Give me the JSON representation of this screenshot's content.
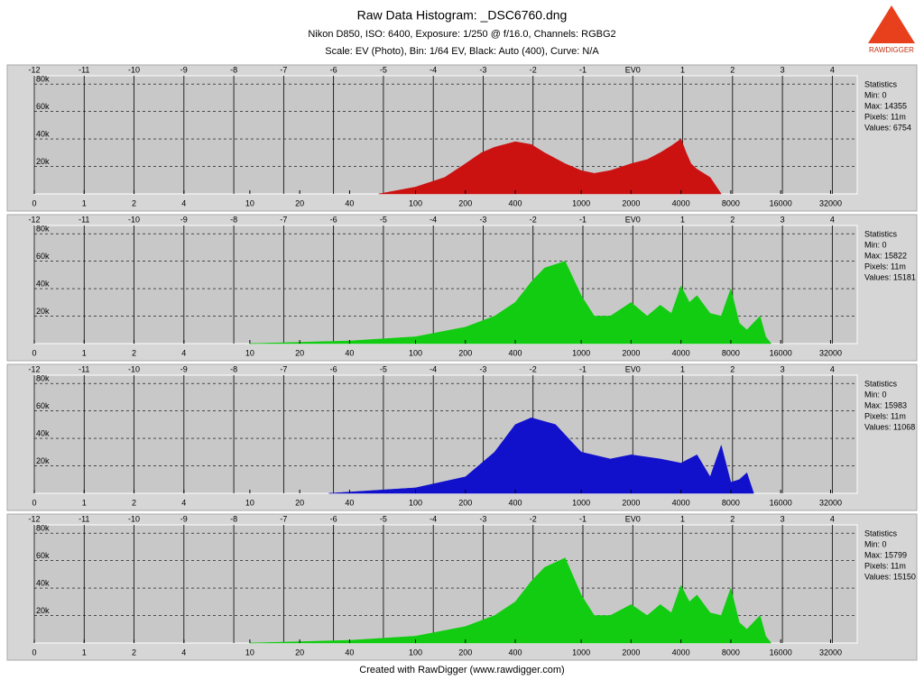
{
  "title": "Raw Data Histogram: _DSC6760.dng",
  "subtitle": "Nikon D850, ISO: 6400, Exposure: 1/250 @ f/16.0, Channels: RGBG2",
  "subtitle2": "Scale: EV (Photo), Bin: 1/64 EV, Black: Auto (400), Curve: N/A",
  "logo": "RAWDIGGER",
  "footer": "Created with RawDigger (www.rawdigger.com)",
  "chart_data": [
    {
      "type": "area",
      "color": "#cc1111",
      "x": [
        60,
        100,
        150,
        200,
        250,
        300,
        400,
        500,
        600,
        800,
        1000,
        1200,
        1500,
        2000,
        2500,
        3000,
        3500,
        4000,
        4300,
        4600,
        5000,
        6000,
        7000
      ],
      "values": [
        0,
        5000,
        12000,
        22000,
        30000,
        34000,
        38000,
        36000,
        30000,
        22000,
        17000,
        15000,
        17000,
        22000,
        25000,
        30000,
        35000,
        40000,
        30000,
        22000,
        18000,
        12000,
        0
      ],
      "xlim": [
        0.5,
        46341
      ],
      "xticks": [
        0,
        1,
        2,
        4,
        10,
        20,
        40,
        100,
        200,
        400,
        1000,
        2000,
        4000,
        8000,
        16000,
        32000
      ],
      "x2lim": [
        -12,
        4.5
      ],
      "x2ticks": [
        -12,
        -11,
        -10,
        -9,
        -8,
        -7,
        -6,
        -5,
        -4,
        -3,
        -2,
        -1,
        {
          "value": 0,
          "label": "EV0"
        },
        1,
        2,
        3,
        4
      ],
      "ylim": [
        0,
        86000
      ],
      "yticks": [
        {
          "value": 20000,
          "label": "20k"
        },
        {
          "value": 40000,
          "label": "40k"
        },
        {
          "value": 60000,
          "label": "60k"
        },
        {
          "value": 80000,
          "label": "80k"
        }
      ],
      "stats": [
        "Statistics",
        "Min: 0",
        "Max: 14355",
        "Pixels: 11m",
        "Values: 6754"
      ]
    },
    {
      "type": "area",
      "color": "#11cc11",
      "x": [
        10,
        40,
        100,
        200,
        300,
        400,
        500,
        600,
        800,
        1000,
        1200,
        1500,
        2000,
        2500,
        3000,
        3500,
        4000,
        4500,
        5000,
        6000,
        7000,
        8000,
        9000,
        10000,
        12000,
        13000,
        14000
      ],
      "values": [
        0,
        2000,
        5000,
        12000,
        20000,
        30000,
        45000,
        55000,
        60000,
        35000,
        20000,
        20000,
        30000,
        20000,
        28000,
        22000,
        42000,
        30000,
        35000,
        22000,
        20000,
        40000,
        15000,
        10000,
        20000,
        5000,
        0
      ],
      "xlim": [
        0.5,
        46341
      ],
      "xticks": [
        0,
        1,
        2,
        4,
        10,
        20,
        40,
        100,
        200,
        400,
        1000,
        2000,
        4000,
        8000,
        16000,
        32000
      ],
      "x2lim": [
        -12,
        4.5
      ],
      "x2ticks": [
        -12,
        -11,
        -10,
        -9,
        -8,
        -7,
        -6,
        -5,
        -4,
        -3,
        -2,
        -1,
        {
          "value": 0,
          "label": "EV0"
        },
        1,
        2,
        3,
        4
      ],
      "ylim": [
        0,
        86000
      ],
      "yticks": [
        {
          "value": 20000,
          "label": "20k"
        },
        {
          "value": 40000,
          "label": "40k"
        },
        {
          "value": 60000,
          "label": "60k"
        },
        {
          "value": 80000,
          "label": "80k"
        }
      ],
      "stats": [
        "Statistics",
        "Min: 0",
        "Max: 15822",
        "Pixels: 11m",
        "Values: 15181"
      ]
    },
    {
      "type": "area",
      "color": "#1111cc",
      "x": [
        30,
        100,
        200,
        300,
        400,
        500,
        700,
        1000,
        1500,
        2000,
        3000,
        4000,
        5000,
        6000,
        7000,
        8000,
        9000,
        10000,
        11000
      ],
      "values": [
        0,
        4000,
        12000,
        30000,
        50000,
        55000,
        50000,
        30000,
        25000,
        28000,
        25000,
        22000,
        28000,
        12000,
        35000,
        8000,
        10000,
        15000,
        0
      ],
      "xlim": [
        0.5,
        46341
      ],
      "xticks": [
        0,
        1,
        2,
        4,
        10,
        20,
        40,
        100,
        200,
        400,
        1000,
        2000,
        4000,
        8000,
        16000,
        32000
      ],
      "x2lim": [
        -12,
        4.5
      ],
      "x2ticks": [
        -12,
        -11,
        -10,
        -9,
        -8,
        -7,
        -6,
        -5,
        -4,
        -3,
        -2,
        -1,
        {
          "value": 0,
          "label": "EV0"
        },
        1,
        2,
        3,
        4
      ],
      "ylim": [
        0,
        86000
      ],
      "yticks": [
        {
          "value": 20000,
          "label": "20k"
        },
        {
          "value": 40000,
          "label": "40k"
        },
        {
          "value": 60000,
          "label": "60k"
        },
        {
          "value": 80000,
          "label": "80k"
        }
      ],
      "stats": [
        "Statistics",
        "Min: 0",
        "Max: 15983",
        "Pixels: 11m",
        "Values: 11068"
      ]
    },
    {
      "type": "area",
      "color": "#11cc11",
      "x": [
        10,
        40,
        100,
        200,
        300,
        400,
        500,
        600,
        800,
        1000,
        1200,
        1500,
        2000,
        2500,
        3000,
        3500,
        4000,
        4500,
        5000,
        6000,
        7000,
        8000,
        9000,
        10000,
        12000,
        13000,
        14000
      ],
      "values": [
        0,
        2000,
        5000,
        12000,
        20000,
        30000,
        45000,
        55000,
        62000,
        35000,
        20000,
        20000,
        28000,
        20000,
        28000,
        22000,
        42000,
        30000,
        35000,
        22000,
        20000,
        40000,
        15000,
        10000,
        20000,
        5000,
        0
      ],
      "xlim": [
        0.5,
        46341
      ],
      "xticks": [
        0,
        1,
        2,
        4,
        10,
        20,
        40,
        100,
        200,
        400,
        1000,
        2000,
        4000,
        8000,
        16000,
        32000
      ],
      "x2lim": [
        -12,
        4.5
      ],
      "x2ticks": [
        -12,
        -11,
        -10,
        -9,
        -8,
        -7,
        -6,
        -5,
        -4,
        -3,
        -2,
        -1,
        {
          "value": 0,
          "label": "EV0"
        },
        1,
        2,
        3,
        4
      ],
      "ylim": [
        0,
        86000
      ],
      "yticks": [
        {
          "value": 20000,
          "label": "20k"
        },
        {
          "value": 40000,
          "label": "40k"
        },
        {
          "value": 60000,
          "label": "60k"
        },
        {
          "value": 80000,
          "label": "80k"
        }
      ],
      "stats": [
        "Statistics",
        "Min: 0",
        "Max: 15799",
        "Pixels: 11m",
        "Values: 15150"
      ]
    }
  ]
}
